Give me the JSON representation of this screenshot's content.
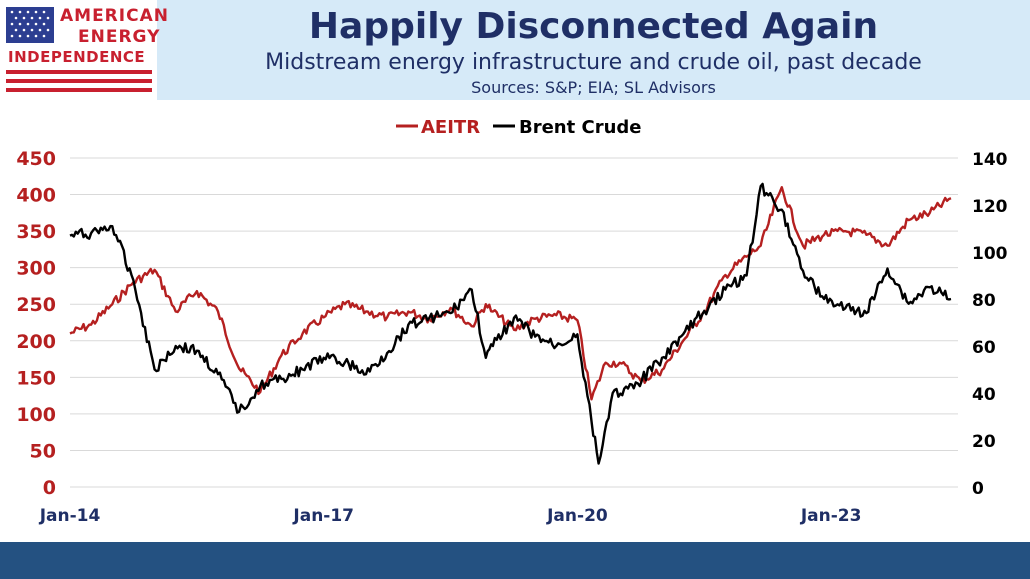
{
  "header": {
    "logo_lines": [
      "AMERICAN",
      "ENERGY",
      "INDEPENDENCE"
    ],
    "title": "Happily Disconnected Again",
    "subtitle": "Midstream energy infrastructure and crude oil, past decade",
    "sources": "Sources: S&P; EIA; SL Advisors"
  },
  "colors": {
    "header_band": "#d6eaf8",
    "footer_band": "#245181",
    "title_text": "#1f2f66",
    "aeitr": "#b52020",
    "brent": "#000000"
  },
  "chart_data": {
    "type": "line",
    "title": "",
    "legend": [
      "AEITR",
      "Brent Crude"
    ],
    "legend_position": "top-center",
    "grid": true,
    "x_axis": {
      "ticks": [
        "Jan-14",
        "Jan-17",
        "Jan-20",
        "Jan-23"
      ],
      "range": [
        "Jan-14",
        "Jul-24"
      ]
    },
    "y_left": {
      "ticks": [
        "0",
        "50",
        "100",
        "150",
        "200",
        "250",
        "300",
        "350",
        "400",
        "450"
      ],
      "range": [
        0,
        450
      ],
      "series": "AEITR"
    },
    "y_right": {
      "ticks": [
        "0",
        "20",
        "40",
        "60",
        "80",
        "100",
        "120",
        "140"
      ],
      "range": [
        0,
        140
      ],
      "series": "Brent Crude"
    },
    "series": [
      {
        "name": "AEITR",
        "axis": "left",
        "x": [
          "2014-01",
          "2014-04",
          "2014-07",
          "2014-10",
          "2015-01",
          "2015-04",
          "2015-07",
          "2015-10",
          "2016-01",
          "2016-04",
          "2016-07",
          "2016-10",
          "2017-01",
          "2017-04",
          "2017-07",
          "2017-10",
          "2018-01",
          "2018-04",
          "2018-07",
          "2018-10",
          "2018-12",
          "2019-01",
          "2019-04",
          "2019-07",
          "2019-10",
          "2020-01",
          "2020-03",
          "2020-05",
          "2020-07",
          "2020-10",
          "2021-01",
          "2021-04",
          "2021-07",
          "2021-10",
          "2022-01",
          "2022-03",
          "2022-06",
          "2022-09",
          "2022-12",
          "2023-03",
          "2023-06",
          "2023-09",
          "2023-12",
          "2024-03",
          "2024-06"
        ],
        "values": [
          210,
          222,
          250,
          280,
          297,
          240,
          268,
          240,
          162,
          130,
          180,
          210,
          232,
          250,
          240,
          232,
          240,
          230,
          245,
          220,
          250,
          240,
          215,
          230,
          235,
          228,
          120,
          170,
          170,
          145,
          160,
          200,
          240,
          290,
          315,
          330,
          410,
          330,
          345,
          350,
          345,
          330,
          365,
          375,
          395
        ]
      },
      {
        "name": "Brent Crude",
        "axis": "right",
        "x": [
          "2014-01",
          "2014-04",
          "2014-07",
          "2014-10",
          "2015-01",
          "2015-04",
          "2015-07",
          "2015-10",
          "2016-01",
          "2016-04",
          "2016-07",
          "2016-10",
          "2017-01",
          "2017-04",
          "2017-07",
          "2017-10",
          "2018-01",
          "2018-04",
          "2018-07",
          "2018-10",
          "2018-12",
          "2019-01",
          "2019-04",
          "2019-07",
          "2019-10",
          "2020-01",
          "2020-03",
          "2020-04",
          "2020-06",
          "2020-09",
          "2021-01",
          "2021-04",
          "2021-07",
          "2021-10",
          "2022-01",
          "2022-03",
          "2022-06",
          "2022-09",
          "2022-12",
          "2023-03",
          "2023-06",
          "2023-09",
          "2023-12",
          "2024-03",
          "2024-06"
        ],
        "values": [
          107,
          108,
          111,
          88,
          50,
          60,
          58,
          48,
          32,
          43,
          46,
          50,
          55,
          53,
          48,
          57,
          69,
          72,
          74,
          84,
          55,
          60,
          72,
          64,
          60,
          65,
          28,
          10,
          40,
          42,
          55,
          65,
          75,
          84,
          90,
          128,
          118,
          92,
          80,
          76,
          74,
          93,
          78,
          85,
          80
        ]
      }
    ]
  }
}
